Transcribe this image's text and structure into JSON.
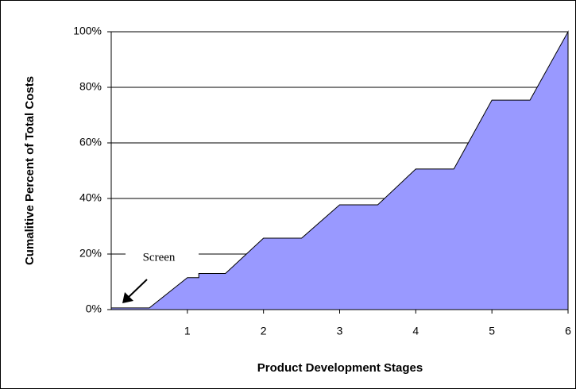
{
  "chart_data": {
    "type": "area",
    "x_label": "Product Development Stages",
    "y_label": "Cumalitive Percent of Total Costs",
    "annotation": "Screen",
    "x": [
      0,
      0.5,
      1,
      1.15,
      1.15,
      1.5,
      2,
      2.5,
      3,
      3.5,
      4,
      4.5,
      5,
      5.5,
      6
    ],
    "values": [
      0.6,
      0.6,
      11.5,
      11.5,
      13,
      13,
      25.7,
      25.7,
      37.7,
      37.7,
      50.6,
      50.6,
      75.4,
      75.4,
      100
    ],
    "color": "#9999ff",
    "xlim": [
      0,
      6
    ],
    "xticks": [
      1,
      2,
      3,
      4,
      5,
      6
    ],
    "ylim": [
      0,
      100
    ],
    "yticks": [
      {
        "value": 0,
        "label": "0%"
      },
      {
        "value": 20,
        "label": "20%"
      },
      {
        "value": 40,
        "label": "40%"
      },
      {
        "value": 60,
        "label": "60%"
      },
      {
        "value": 80,
        "label": "80%"
      },
      {
        "value": 100,
        "label": "100%"
      }
    ],
    "grid": true
  }
}
